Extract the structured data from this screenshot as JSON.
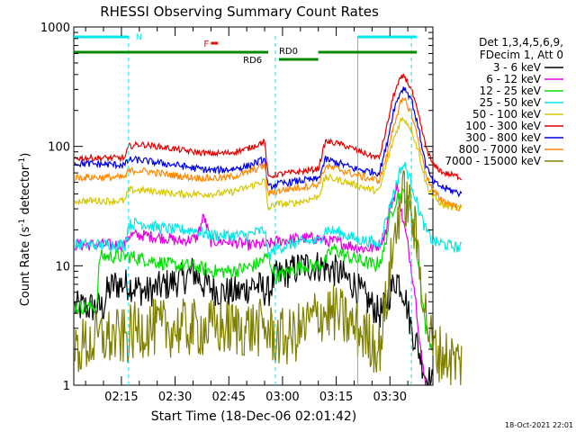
{
  "chart_data": {
    "type": "line",
    "title": "RHESSI Observing Summary Count Rates",
    "xlabel": "Start Time (18-Dec-06 02:01:42)",
    "ylabel_main": "Count Rate (s",
    "ylabel_sup1": "-1",
    "ylabel_mid": " detector",
    "ylabel_sup2": "-1",
    "ylabel_end": ")",
    "yscale": "log",
    "ylim": [
      1,
      1000
    ],
    "xlim": [
      "02:01:42",
      "03:42:00"
    ],
    "x_ticks": [
      "02:15",
      "02:30",
      "02:45",
      "03:00",
      "03:15",
      "03:30"
    ],
    "y_tick_labels": [
      "1",
      "10",
      "100",
      "1000"
    ],
    "legend_header": [
      "Det 1,3,4,5,6,9,",
      "FDecim 1, Att 0"
    ],
    "timestamp": "18-Oct-2021 22:01",
    "flags": {
      "N": {
        "label": "N",
        "color": "#00e8e8"
      },
      "F": {
        "label": "F",
        "color": "#e01010"
      },
      "RD0": {
        "label": "RD0",
        "color": "#008800"
      },
      "RD6": {
        "label": "RD6",
        "color": "#008800"
      }
    },
    "series": [
      {
        "name": "3 - 6 keV",
        "color": "#000000"
      },
      {
        "name": "6 - 12 keV",
        "color": "#e000e0"
      },
      {
        "name": "12 - 25 keV",
        "color": "#00e000"
      },
      {
        "name": "25 - 50 keV",
        "color": "#00e8e8"
      },
      {
        "name": "50 - 100 keV",
        "color": "#d8c800"
      },
      {
        "name": "100 - 300 keV",
        "color": "#e00000"
      },
      {
        "name": "300 - 800 keV",
        "color": "#0000e0"
      },
      {
        "name": "800 - 7000 keV",
        "color": "#ff8800"
      },
      {
        "name": "7000 - 15000 keV",
        "color": "#808000"
      }
    ]
  }
}
